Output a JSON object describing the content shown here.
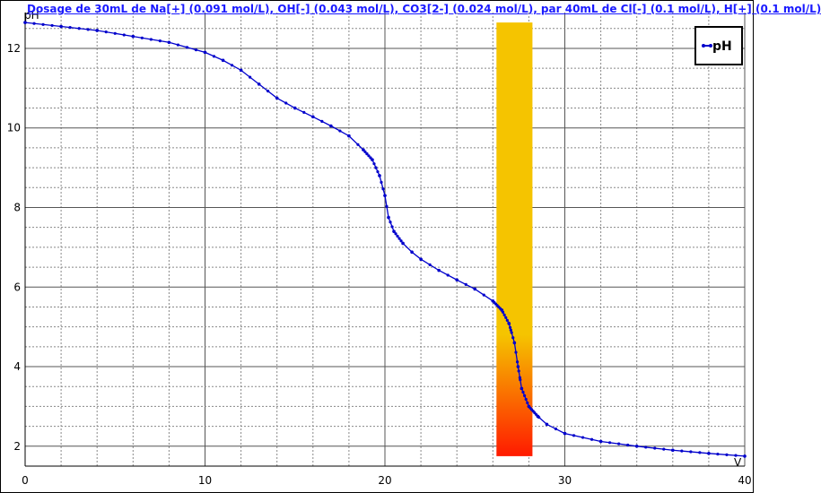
{
  "chart_data": {
    "type": "line",
    "title": "Dosage de 30mL de Na[+] (0.091 mol/L), OH[-] (0.043 mol/L), CO3[2-] (0.024 mol/L),  par 40mL  de Cl[-] (0.1 mol/L), H[+] (0.1 mol/L)",
    "xlabel": "V",
    "ylabel": "pH",
    "xlim": [
      0,
      40
    ],
    "ylim": [
      1.5,
      12.9
    ],
    "x_ticks": [
      "0",
      "10",
      "20",
      "30",
      "40"
    ],
    "y_ticks": [
      "2",
      "4",
      "6",
      "8",
      "10",
      "12"
    ],
    "grid": true,
    "legend_position": "top-right",
    "series": [
      {
        "name": "pH",
        "color": "#0000cc",
        "x": [
          0,
          2,
          4,
          6,
          8,
          10,
          11,
          12,
          13,
          14,
          15,
          16,
          17,
          18,
          18.8,
          19.3,
          19.7,
          20,
          20.2,
          20.5,
          21,
          21.5,
          22,
          23,
          24,
          25,
          26,
          26.5,
          26.9,
          27.2,
          27.4,
          27.6,
          28,
          28.5,
          29,
          30,
          32,
          34,
          36,
          38,
          40
        ],
        "y": [
          12.65,
          12.55,
          12.45,
          12.3,
          12.15,
          11.9,
          11.7,
          11.45,
          11.1,
          10.75,
          10.5,
          10.28,
          10.05,
          9.8,
          9.45,
          9.2,
          8.8,
          8.3,
          7.75,
          7.4,
          7.1,
          6.88,
          6.7,
          6.42,
          6.18,
          5.95,
          5.65,
          5.42,
          5.08,
          4.6,
          4.0,
          3.45,
          3.0,
          2.75,
          2.55,
          2.32,
          2.12,
          2.0,
          1.9,
          1.82,
          1.75
        ]
      }
    ],
    "highlight_band": {
      "x_range": [
        26.2,
        28.2
      ],
      "colors": {
        "top": "#f5c400",
        "bottom": "#ff1a00"
      }
    }
  }
}
